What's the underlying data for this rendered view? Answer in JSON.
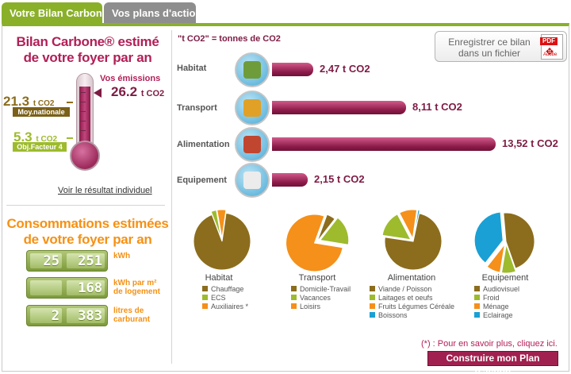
{
  "tabs": [
    {
      "label": "Votre Bilan Carbone"
    },
    {
      "label": "Vos plans d'action"
    }
  ],
  "export": {
    "label_line1": "Enregistrer ce bilan",
    "label_line2": "dans un fichier",
    "pdf_tag": "PDF",
    "pdf_brand": "Adobe"
  },
  "bilan": {
    "title_line1": "Bilan Carbone® estimé",
    "title_line2": "de votre foyer par an",
    "emissions_label": "Vos émissions",
    "emissions_value": "26.2",
    "emissions_unit": "t CO2",
    "national_value": "21.3",
    "national_unit": "t CO2",
    "national_label": "Moy.nationale",
    "factor_value": "5.3",
    "factor_unit": "t CO2",
    "factor_label": "Obj.Facteur 4",
    "result_link": "Voir le résultat individuel"
  },
  "conso": {
    "title_line1": "Consommations estimées",
    "title_line2": "de votre foyer par an",
    "rows": [
      {
        "seg1": "25",
        "seg2": "251",
        "unit_line1": "kWh",
        "unit_line2": ""
      },
      {
        "seg1": "",
        "seg2": "168",
        "unit_line1": "kWh par m²",
        "unit_line2": "de logement"
      },
      {
        "seg1": "2",
        "seg2": "383",
        "unit_line1": "litres de",
        "unit_line2": "carburant"
      }
    ]
  },
  "unit_note": "\"t CO2\" = tonnes de CO2",
  "chart_data": [
    {
      "type": "bar",
      "title": "",
      "categories": [
        "Habitat",
        "Transport",
        "Alimentation",
        "Equipement"
      ],
      "values": [
        2.47,
        8.11,
        13.52,
        2.15
      ],
      "value_labels": [
        "2,47 t CO2",
        "8,11 t CO2",
        "13,52 t CO2",
        "2,15 t CO2"
      ],
      "unit": "t CO2",
      "orientation": "horizontal"
    },
    {
      "type": "pie",
      "title": "Habitat",
      "labels": [
        "Chauffage",
        "ECS",
        "Auxiliaires *"
      ],
      "values": [
        92,
        3,
        5
      ],
      "colors": [
        "#8c6d1d",
        "#9dbb2d",
        "#f5901a"
      ]
    },
    {
      "type": "pie",
      "title": "Transport",
      "labels": [
        "Domicile-Travail",
        "Vacances",
        "Loisirs"
      ],
      "values": [
        5,
        17,
        78
      ],
      "colors": [
        "#8c6d1d",
        "#9dbb2d",
        "#f5901a"
      ]
    },
    {
      "type": "pie",
      "title": "Alimentation",
      "labels": [
        "Viande / Poisson",
        "Laitages et oeufs",
        "Fruits Légumes Céréale",
        "Boissons"
      ],
      "values": [
        74,
        15,
        10,
        1
      ],
      "colors": [
        "#8c6d1d",
        "#9dbb2d",
        "#f5901a",
        "#1aa0d4"
      ]
    },
    {
      "type": "pie",
      "title": "Equipement",
      "labels": [
        "Audiovisuel",
        "Froid",
        "Ménage",
        "Eclairage"
      ],
      "values": [
        46,
        8,
        8,
        38
      ],
      "colors": [
        "#8c6d1d",
        "#9dbb2d",
        "#f5901a",
        "#1aa0d4"
      ]
    }
  ],
  "footer": {
    "info_link": "(*) : Pour en savoir plus, cliquez ici.",
    "plan_button": "Construire mon Plan d'action"
  }
}
